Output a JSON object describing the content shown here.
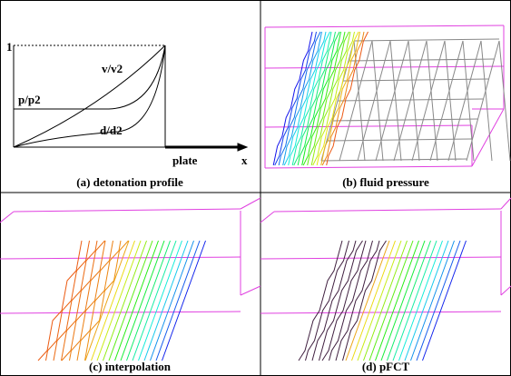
{
  "profile": {
    "y_label": "1",
    "curves": [
      "v/v2",
      "p/p2",
      "d/d2"
    ],
    "plate": "plate",
    "x_axis": "x"
  },
  "captions": [
    "(a) detonation profile",
    "(b) fluid pressure",
    "(c) interpolation",
    "(d) pFCT"
  ]
}
